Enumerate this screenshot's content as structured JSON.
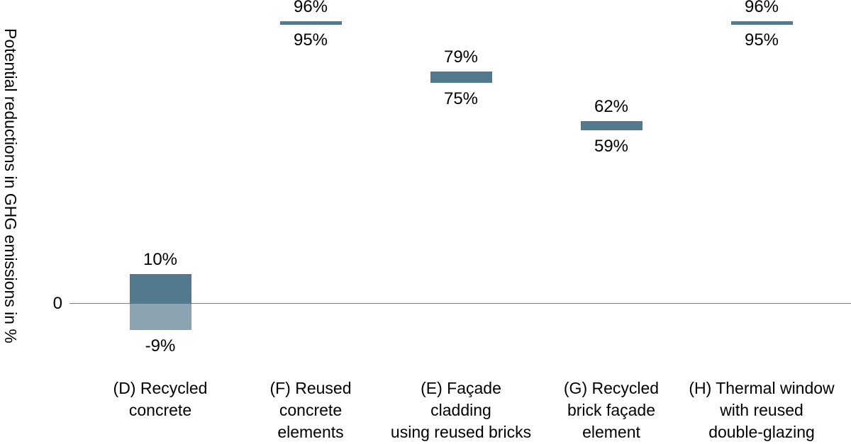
{
  "chart_data": {
    "type": "bar",
    "subtype": "floating-range-bars",
    "title": "",
    "ylabel": "Potential reductions in GHG emissions in %",
    "xlabel": "",
    "zero_tick": "0",
    "ylim": [
      -22,
      104
    ],
    "grid": false,
    "legend": "none",
    "bars": [
      {
        "category": "(D) Recycled concrete",
        "category_lines": [
          "(D) Recycled",
          "concrete"
        ],
        "high": 10,
        "low": -9,
        "high_label": "10%",
        "low_label": "-9%"
      },
      {
        "category": "(F) Reused concrete elements",
        "category_lines": [
          "(F) Reused",
          "concrete",
          "elements"
        ],
        "high": 96,
        "low": 95,
        "high_label": "96%",
        "low_label": "95%"
      },
      {
        "category": "(E) Façade cladding using reused bricks",
        "category_lines": [
          "(E) Façade",
          "cladding",
          "using reused bricks"
        ],
        "high": 79,
        "low": 75,
        "high_label": "79%",
        "low_label": "75%"
      },
      {
        "category": "(G) Recycled brick façade element",
        "category_lines": [
          "(G) Recycled",
          "brick façade",
          "element"
        ],
        "high": 62,
        "low": 59,
        "high_label": "62%",
        "low_label": "59%"
      },
      {
        "category": "(H) Thermal window with reused double-glazing",
        "category_lines": [
          "(H) Thermal window",
          "with reused",
          "double-glazing"
        ],
        "high": 96,
        "low": 95,
        "high_label": "96%",
        "low_label": "95%"
      }
    ],
    "colors": {
      "bar_positive": "#53798E",
      "bar_negative": "#8BA3B0",
      "axis_line": "#808080",
      "text": "#000000",
      "background": "#ffffff"
    }
  }
}
